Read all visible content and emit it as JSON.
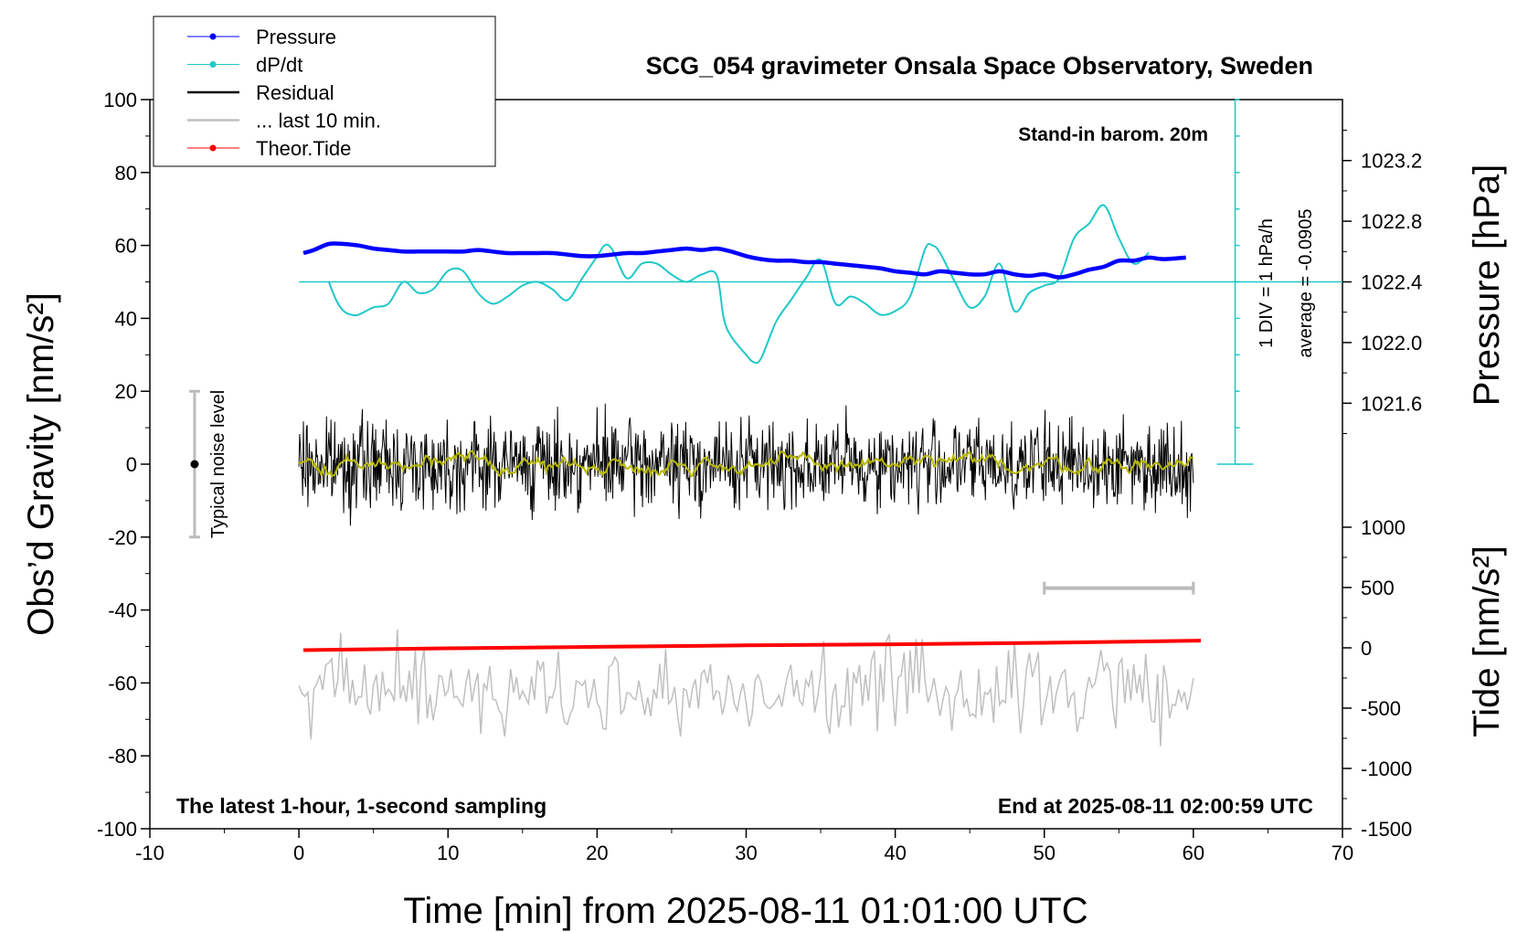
{
  "chart_data": {
    "type": "line",
    "title": "SCG_054 gravimeter Onsala Space Observatory, Sweden",
    "xlabel": "Time [min] from 2025-08-11 01:01:00 UTC",
    "ylabel_left": "Obs’d Gravity [nm/s²]",
    "ylabel_right_top": "Pressure [hPa]",
    "ylabel_right_bottom": "Tide [nm/s²]",
    "xlim": [
      -10,
      70
    ],
    "ylim": [
      -100,
      100
    ],
    "x_ticks": [
      -10,
      0,
      10,
      20,
      30,
      40,
      50,
      60,
      70
    ],
    "x_tick_labels": [
      "-10",
      "0",
      "10",
      "20",
      "30",
      "40",
      "50",
      "60",
      "70"
    ],
    "y_ticks": [
      -100,
      -80,
      -60,
      -40,
      -20,
      0,
      20,
      40,
      60,
      80,
      100
    ],
    "y_tick_labels": [
      "-100",
      "-80",
      "-60",
      "-40",
      "-20",
      "0",
      "20",
      "40",
      "60",
      "80",
      "100"
    ],
    "pressure_axis": {
      "ticks": [
        1021.6,
        1022.0,
        1022.4,
        1022.8,
        1023.2
      ],
      "tick_labels": [
        "1021.6",
        "1022.0",
        "1022.4",
        "1022.8",
        "1023.2"
      ],
      "value_to_gravity": {
        "p0": 1022.4,
        "g0": 50,
        "g_per_hpa": 41.6
      }
    },
    "tide_axis": {
      "ticks": [
        -1500,
        -1000,
        -500,
        0,
        500,
        1000
      ],
      "tick_labels": [
        "-1500",
        "-1000",
        "-500",
        "0",
        "500",
        "1000"
      ],
      "range": [
        -1500,
        1000
      ]
    },
    "annotations": {
      "barometer": "Stand-in barom. 20m",
      "div_scale": "1 DIV = 1 hPa/h",
      "average": "average = -0.0905",
      "noise_level": "Typical noise level",
      "latest": "The latest 1-hour, 1-second sampling",
      "end_time": "End at 2025-08-11 02:00:59 UTC"
    },
    "legend": {
      "placement": "top-left",
      "entries": [
        {
          "label": "Pressure",
          "color": "#0000ff",
          "marker": true
        },
        {
          "label": "dP/dt",
          "color": "#20c8c8",
          "marker": true
        },
        {
          "label": "Residual",
          "color": "#000000",
          "marker": false
        },
        {
          "label": "... last 10 min.",
          "color": "#c0c0c0",
          "marker": false
        },
        {
          "label": "Theor.Tide",
          "color": "#ff0000",
          "marker": true
        }
      ]
    },
    "noise_bar": {
      "x": -7,
      "center": 0,
      "low": -20,
      "high": 20
    },
    "last10_bar": {
      "x_start": 50,
      "x_end": 60,
      "y": -34
    },
    "dpdt_zero_line": 50,
    "series": [
      {
        "name": "Pressure",
        "color": "#0000ff",
        "x": [
          0.3,
          1,
          2,
          3,
          4,
          5,
          6,
          7,
          8,
          9,
          10,
          11,
          12,
          13,
          14,
          15,
          16,
          17,
          18,
          19,
          20,
          21,
          22,
          23,
          24,
          25,
          26,
          27,
          28,
          29,
          30,
          31,
          32,
          33,
          34,
          35,
          36,
          37,
          38,
          39,
          40,
          41,
          42,
          43,
          44,
          45,
          46,
          47,
          48,
          49,
          50,
          51,
          52,
          53,
          54,
          55,
          56,
          57,
          58,
          59.5
        ],
        "values": [
          1022.59,
          1022.61,
          1022.65,
          1022.65,
          1022.64,
          1022.62,
          1022.61,
          1022.6,
          1022.6,
          1022.6,
          1022.6,
          1022.6,
          1022.61,
          1022.6,
          1022.59,
          1022.59,
          1022.59,
          1022.59,
          1022.58,
          1022.57,
          1022.57,
          1022.58,
          1022.59,
          1022.59,
          1022.6,
          1022.61,
          1022.62,
          1022.61,
          1022.62,
          1022.6,
          1022.57,
          1022.55,
          1022.54,
          1022.54,
          1022.53,
          1022.53,
          1022.52,
          1022.51,
          1022.5,
          1022.49,
          1022.47,
          1022.46,
          1022.45,
          1022.47,
          1022.46,
          1022.45,
          1022.45,
          1022.47,
          1022.45,
          1022.44,
          1022.45,
          1022.43,
          1022.45,
          1022.48,
          1022.5,
          1022.54,
          1022.54,
          1022.56,
          1022.55,
          1022.56
        ]
      },
      {
        "name": "dP/dt",
        "color": "#20c8c8",
        "x": [
          2,
          2.5,
          3,
          3.5,
          4,
          5,
          6,
          7,
          8,
          9,
          10,
          11,
          12,
          13,
          14,
          15,
          16,
          17,
          18,
          19,
          20,
          20.5,
          21,
          22,
          23,
          24,
          25,
          26,
          27,
          28,
          28.5,
          29,
          30,
          30.5,
          31,
          32,
          33,
          34,
          35,
          36,
          37,
          38,
          39,
          40,
          41,
          42,
          42.5,
          43,
          44,
          45,
          46,
          47,
          48,
          49,
          50,
          51,
          52,
          53,
          54,
          55,
          56,
          57
        ],
        "values": [
          50,
          45,
          42,
          41,
          41,
          43,
          44,
          50,
          47,
          48,
          53,
          53,
          47,
          44,
          46,
          49,
          50,
          48,
          45,
          51,
          57,
          60,
          59,
          51,
          55,
          55,
          52,
          50,
          52,
          52,
          40,
          35,
          30,
          28,
          29,
          39,
          45,
          51,
          56,
          44,
          46,
          44,
          41,
          42,
          46,
          59,
          60,
          58,
          50,
          43,
          46,
          55,
          42,
          47,
          49,
          51,
          62,
          66,
          71,
          62,
          55,
          58
        ]
      },
      {
        "name": "Residual",
        "color": "#000000",
        "x_range": [
          0,
          60
        ],
        "amplitude": 6,
        "mean": 0
      },
      {
        "name": "Smoothed residual",
        "color": "#b8b800",
        "x_range": [
          0,
          60
        ],
        "amplitude": 1.5,
        "mean": 0
      },
      {
        "name": "Theor.Tide",
        "color": "#ff0000",
        "x": [
          0.3,
          10,
          20,
          30,
          40,
          50,
          60.5
        ],
        "values": [
          -51,
          -50.5,
          -50.1,
          -49.7,
          -49.4,
          -49,
          -48.4
        ]
      },
      {
        "name": "... last 10 min.",
        "color": "#c0c0c0",
        "x_range": [
          0,
          60
        ],
        "amplitude": 6,
        "mean": -62
      }
    ]
  }
}
